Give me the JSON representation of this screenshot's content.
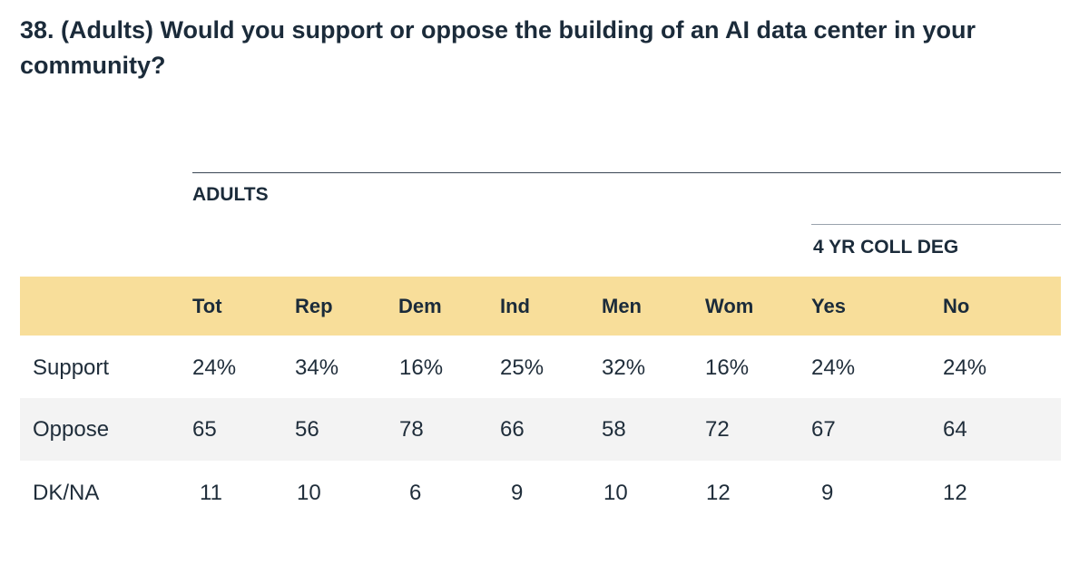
{
  "title": "38. (Adults) Would you support or oppose the building of an AI data center in your community?",
  "groups": {
    "adults": "ADULTS",
    "college": "4 YR COLL DEG"
  },
  "columns": [
    "Tot",
    "Rep",
    "Dem",
    "Ind",
    "Men",
    "Wom",
    "Yes",
    "No"
  ],
  "rows": [
    {
      "label": "Support",
      "values": [
        "24%",
        "34%",
        "16%",
        "25%",
        "32%",
        "16%",
        "24%",
        "24%"
      ]
    },
    {
      "label": "Oppose",
      "values": [
        "65",
        "56",
        "78",
        "66",
        "58",
        "72",
        "67",
        "64"
      ]
    },
    {
      "label": "DK/NA",
      "values": [
        "11",
        "10",
        "6",
        "9",
        "10",
        "12",
        "9",
        "12"
      ]
    }
  ],
  "colors": {
    "header_band": "#f8de9a",
    "stripe": "#f3f3f3",
    "text": "#1b2b3a"
  }
}
